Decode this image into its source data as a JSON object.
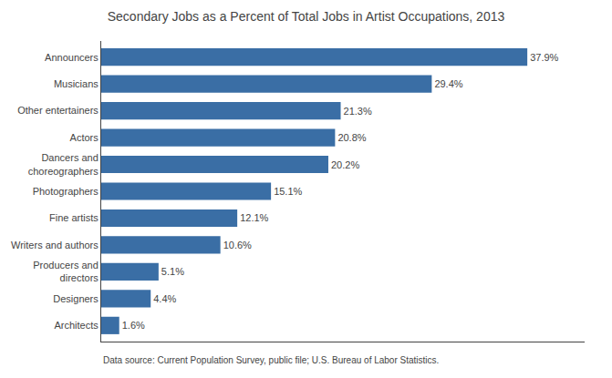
{
  "chart_data": {
    "type": "bar",
    "orientation": "horizontal",
    "title": "Secondary Jobs as a Percent of Total Jobs in Artist Occupations, 2013",
    "categories": [
      "Architects",
      "Designers",
      "Producers and\ndirectors",
      "Writers and authors",
      "Fine artists",
      "Photographers",
      "Dancers and\nchoreographers",
      "Actors",
      "Other entertainers",
      "Musicians",
      "Announcers"
    ],
    "values": [
      1.6,
      4.4,
      5.1,
      10.6,
      12.1,
      15.1,
      20.2,
      20.8,
      21.3,
      29.4,
      37.9
    ],
    "value_labels": [
      "1.6%",
      "4.4%",
      "5.1%",
      "10.6%",
      "12.1%",
      "15.1%",
      "20.2%",
      "20.8%",
      "21.3%",
      "29.4%",
      "37.9%"
    ],
    "data_labels": true,
    "color": "#3A6EA5",
    "xlim": [
      0,
      43
    ],
    "tick_labels": "y",
    "grid": false,
    "annotations": [
      "Data source: Current Population Survey, public file; U.S. Bureau of Labor Statistics."
    ]
  }
}
